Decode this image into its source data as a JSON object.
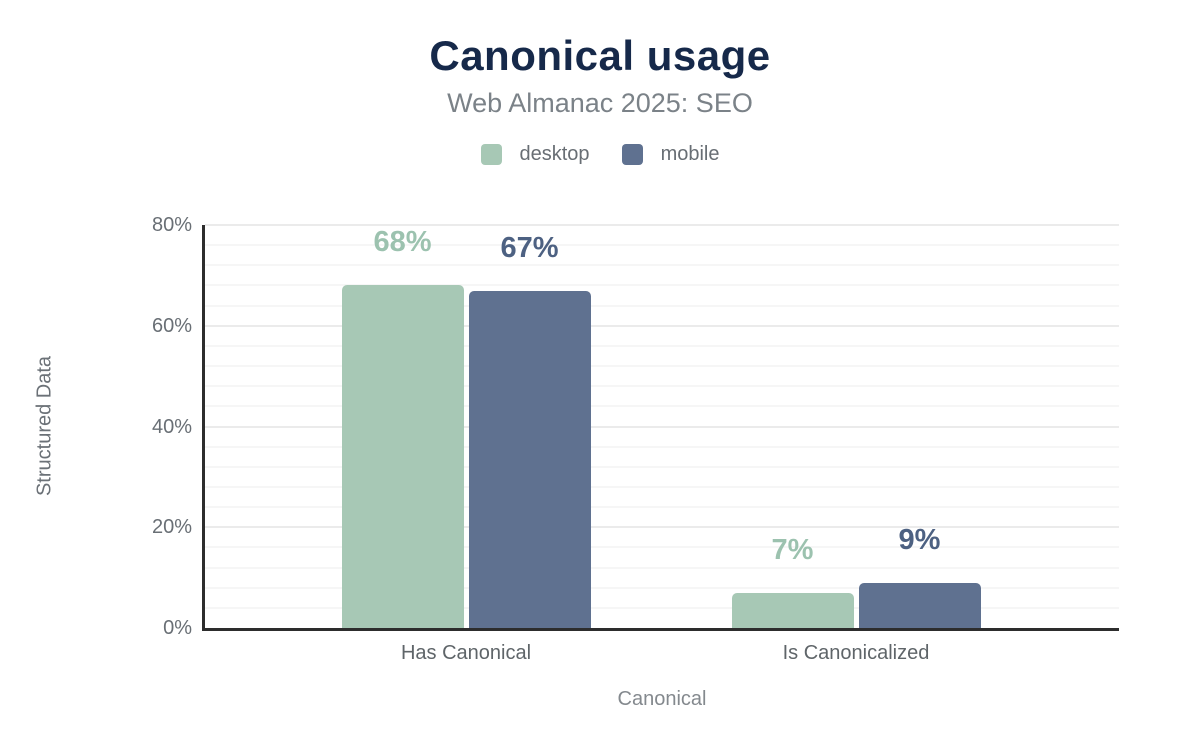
{
  "header": {
    "title": "Canonical usage",
    "subtitle": "Web Almanac 2025: SEO"
  },
  "legend": {
    "items": [
      {
        "label": "desktop",
        "color": "#a7c8b5"
      },
      {
        "label": "mobile",
        "color": "#5f7190"
      }
    ]
  },
  "chart_data": {
    "type": "bar",
    "title": "Canonical usage",
    "subtitle": "Web Almanac 2025: SEO",
    "categories": [
      "Has Canonical",
      "Is Canonicalized"
    ],
    "series": [
      {
        "name": "desktop",
        "values": [
          68,
          7
        ],
        "labels": [
          "68%",
          "7%"
        ],
        "color": "#a7c8b5",
        "label_color": "#9cc2af"
      },
      {
        "name": "mobile",
        "values": [
          67,
          9
        ],
        "labels": [
          "67%",
          "9%"
        ],
        "color": "#5f7190",
        "label_color": "#4d6182"
      }
    ],
    "xlabel": "Canonical",
    "ylabel": "Structured Data",
    "ylim": [
      0,
      80
    ],
    "yticks": [
      0,
      20,
      40,
      60,
      80
    ],
    "ytick_labels": [
      "0%",
      "20%",
      "40%",
      "60%",
      "80%"
    ],
    "grid": {
      "on": true,
      "minor_step": 4,
      "major_step": 20,
      "minor_color": "#f6f6f6",
      "major_color": "#ebebeb"
    },
    "legend_position": "top",
    "colors": {
      "title_text": "#16294a",
      "subtitle_text": "#7b8288",
      "axis_line": "#2d2d2d",
      "tick_text": "#696f75",
      "category_text": "#5f6569",
      "axis_title_text": "#84898e"
    }
  }
}
